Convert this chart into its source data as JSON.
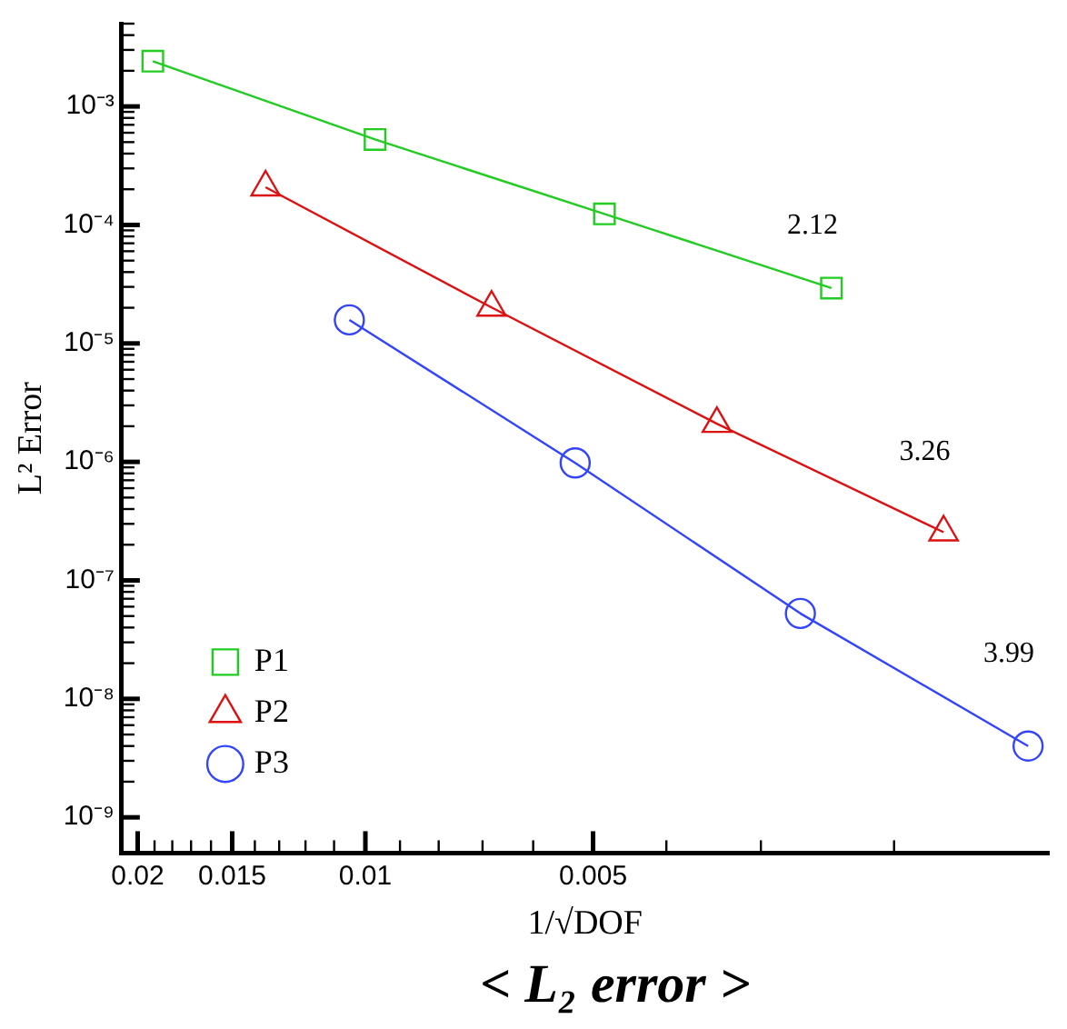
{
  "chart_data": {
    "type": "line",
    "title": "< L₂ error >",
    "xlabel": "1/√DOF",
    "ylabel": "L² Error",
    "log": "xy",
    "grid": false,
    "legend": "bottom left",
    "line_style": "solid",
    "xlim": [
      0.021,
      0.00125
    ],
    "xticks": [
      {
        "value": 0.02,
        "label": "0.02"
      },
      {
        "value": 0.019,
        "label": null
      },
      {
        "value": 0.018,
        "label": null
      },
      {
        "value": 0.017,
        "label": null
      },
      {
        "value": 0.016,
        "label": null
      },
      {
        "value": 0.015,
        "label": "0.015"
      },
      {
        "value": 0.014,
        "label": null
      },
      {
        "value": 0.013,
        "label": null
      },
      {
        "value": 0.012,
        "label": null
      },
      {
        "value": 0.011,
        "label": null
      },
      {
        "value": 0.01,
        "label": "0.01"
      },
      {
        "value": 0.009,
        "label": null
      },
      {
        "value": 0.008,
        "label": null
      },
      {
        "value": 0.007,
        "label": null
      },
      {
        "value": 0.006,
        "label": null
      },
      {
        "value": 0.005,
        "label": "0.005"
      },
      {
        "value": 0.004,
        "label": null
      },
      {
        "value": 0.003,
        "label": null
      },
      {
        "value": 0.002,
        "label": null
      }
    ],
    "ylim": [
      5e-10,
      0.005
    ],
    "yticks": [
      {
        "value": 1e-09,
        "label": "10⁻⁹"
      },
      {
        "value": 2e-09,
        "label": null
      },
      {
        "value": 3e-09,
        "label": null
      },
      {
        "value": 4e-09,
        "label": null
      },
      {
        "value": 5e-09,
        "label": null
      },
      {
        "value": 6e-09,
        "label": null
      },
      {
        "value": 7e-09,
        "label": null
      },
      {
        "value": 8e-09,
        "label": null
      },
      {
        "value": 9e-09,
        "label": null
      },
      {
        "value": 1e-08,
        "label": "10⁻⁸"
      },
      {
        "value": 2e-08,
        "label": null
      },
      {
        "value": 3e-08,
        "label": null
      },
      {
        "value": 4e-08,
        "label": null
      },
      {
        "value": 5e-08,
        "label": null
      },
      {
        "value": 6e-08,
        "label": null
      },
      {
        "value": 7e-08,
        "label": null
      },
      {
        "value": 8e-08,
        "label": null
      },
      {
        "value": 9e-08,
        "label": null
      },
      {
        "value": 1e-07,
        "label": "10⁻⁷"
      },
      {
        "value": 2e-07,
        "label": null
      },
      {
        "value": 3e-07,
        "label": null
      },
      {
        "value": 4e-07,
        "label": null
      },
      {
        "value": 5e-07,
        "label": null
      },
      {
        "value": 6e-07,
        "label": null
      },
      {
        "value": 7e-07,
        "label": null
      },
      {
        "value": 8e-07,
        "label": null
      },
      {
        "value": 9e-07,
        "label": null
      },
      {
        "value": 1e-06,
        "label": "10⁻⁶"
      },
      {
        "value": 2e-06,
        "label": null
      },
      {
        "value": 3e-06,
        "label": null
      },
      {
        "value": 4e-06,
        "label": null
      },
      {
        "value": 5e-06,
        "label": null
      },
      {
        "value": 6e-06,
        "label": null
      },
      {
        "value": 7e-06,
        "label": null
      },
      {
        "value": 8e-06,
        "label": null
      },
      {
        "value": 9e-06,
        "label": null
      },
      {
        "value": 1e-05,
        "label": "10⁻⁵"
      },
      {
        "value": 2e-05,
        "label": null
      },
      {
        "value": 3e-05,
        "label": null
      },
      {
        "value": 4e-05,
        "label": null
      },
      {
        "value": 5e-05,
        "label": null
      },
      {
        "value": 6e-05,
        "label": null
      },
      {
        "value": 7e-05,
        "label": null
      },
      {
        "value": 8e-05,
        "label": null
      },
      {
        "value": 9e-05,
        "label": null
      },
      {
        "value": 0.0001,
        "label": "10⁻⁴"
      },
      {
        "value": 0.0002,
        "label": null
      },
      {
        "value": 0.0003,
        "label": null
      },
      {
        "value": 0.0004,
        "label": null
      },
      {
        "value": 0.0005,
        "label": null
      },
      {
        "value": 0.0006,
        "label": null
      },
      {
        "value": 0.0007,
        "label": null
      },
      {
        "value": 0.0008,
        "label": null
      },
      {
        "value": 0.0009,
        "label": null
      },
      {
        "value": 0.001,
        "label": "10⁻³"
      },
      {
        "value": 0.002,
        "label": null
      },
      {
        "value": 0.003,
        "label": null
      },
      {
        "value": 0.004,
        "label": null
      },
      {
        "value": 0.005,
        "label": null
      }
    ],
    "series": [
      {
        "name": "P1",
        "color": "#22cc22",
        "marker": "square",
        "x": [
          0.0191,
          0.00971,
          0.00483,
          0.00242
        ],
        "values": [
          0.00241,
          0.000526,
          0.000124,
          2.93e-05
        ]
      },
      {
        "name": "P2",
        "color": "#dd1111",
        "marker": "triangle",
        "x": [
          0.01355,
          0.00681,
          0.00343,
          0.00172
        ],
        "values": [
          0.000208,
          2.01e-05,
          2.1e-06,
          2.55e-07
        ]
      },
      {
        "name": "P3",
        "color": "#3344ff",
        "marker": "circle",
        "x": [
          0.0105,
          0.00528,
          0.00266,
          0.00133
        ],
        "values": [
          1.58e-05,
          9.8e-07,
          5.26e-08,
          4e-09
        ]
      }
    ],
    "annotations": [
      "2.12",
      "3.26",
      "3.99"
    ]
  }
}
